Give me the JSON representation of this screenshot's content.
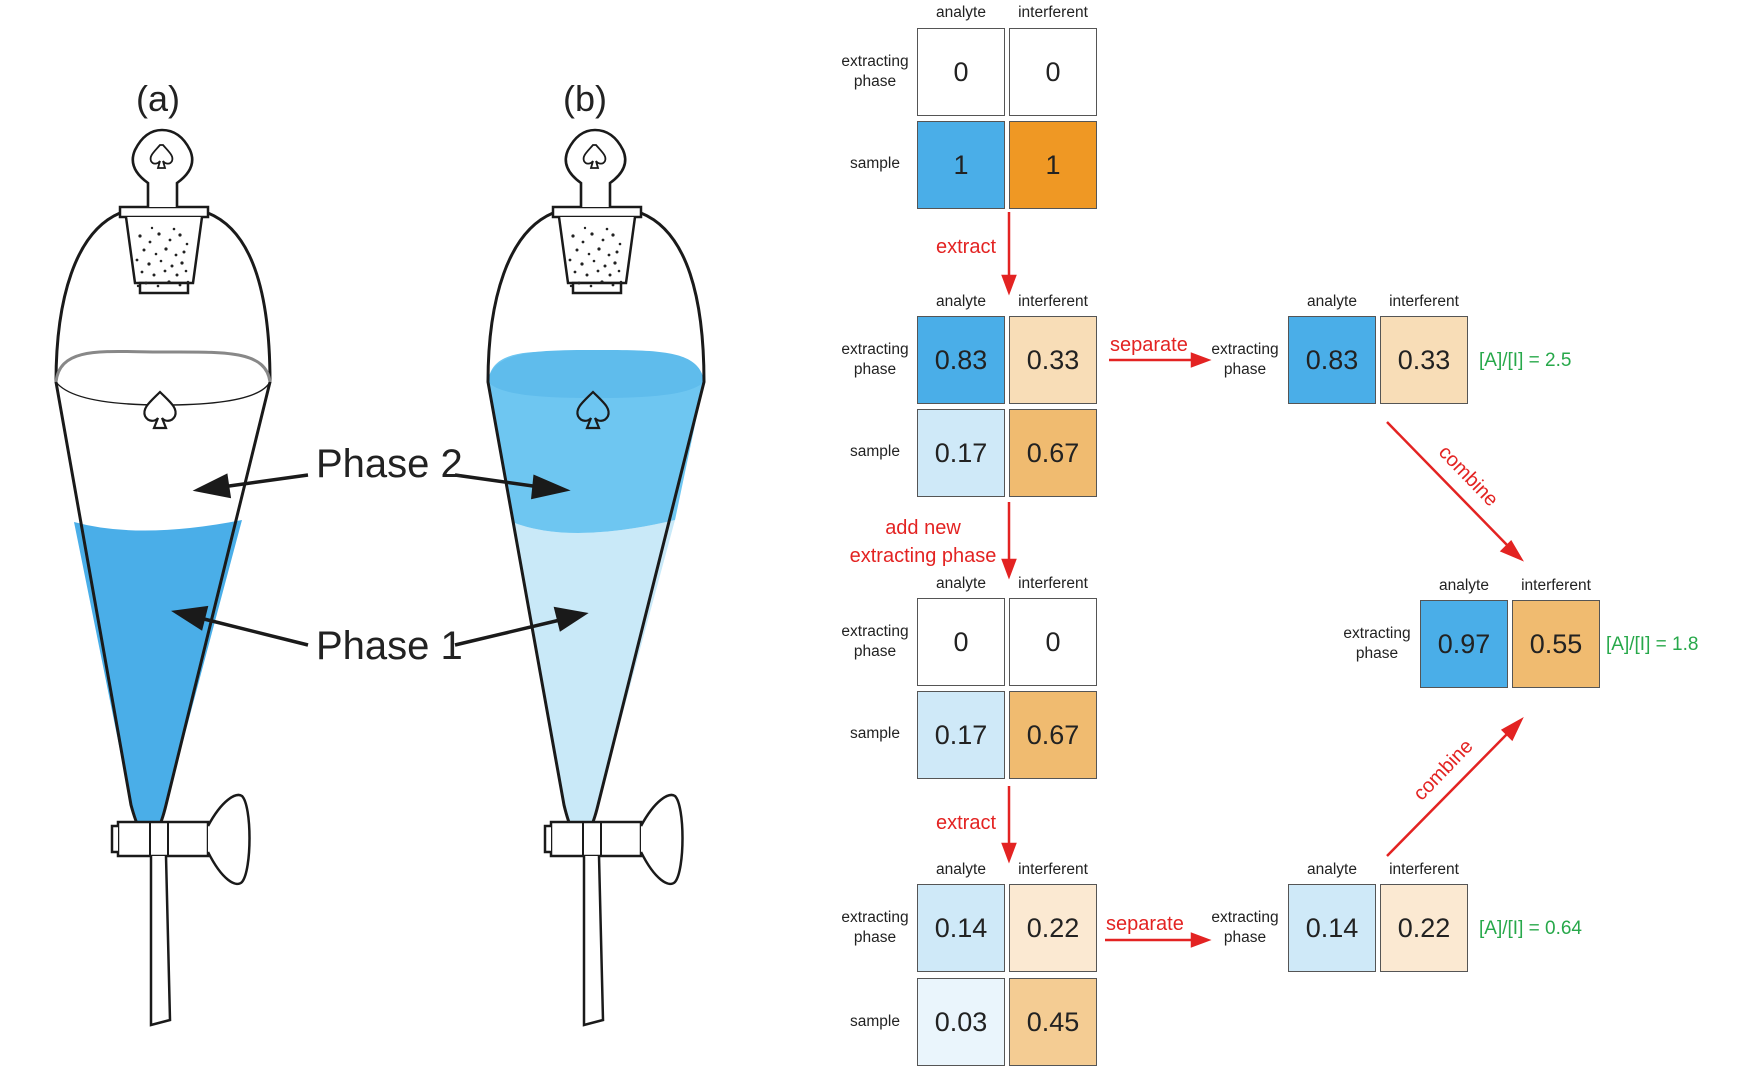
{
  "funnels": {
    "label_a": "(a)",
    "label_b": "(b)",
    "phase2_label": "Phase 2",
    "phase1_label": "Phase 1"
  },
  "colors": {
    "analyte_full": "#4aaee8",
    "analyte_light": "#cfe9f8",
    "analyte_faint": "#eaf5fc",
    "interferent_full": "#ef9824",
    "interferent_mid": "#f0bb70",
    "interferent_light": "#f8ddb7",
    "interferent_faint": "#fbe9d2",
    "arrow_red": "#e32322",
    "ratio_green": "#27a84a",
    "phase2_blue": "#6ec6f1",
    "phase1_blue": "#4aaee8",
    "phase1_light": "#c9e9f8"
  },
  "labels": {
    "analyte": "analyte",
    "interferent": "interferent",
    "extracting_phase": "extracting phase",
    "sample": "sample"
  },
  "tables": {
    "t1": {
      "extracting": [
        "0",
        "0"
      ],
      "sample": [
        "1",
        "1"
      ]
    },
    "t2": {
      "extracting": [
        "0.83",
        "0.33"
      ],
      "sample": [
        "0.17",
        "0.67"
      ]
    },
    "t3": {
      "extracting": [
        "0",
        "0"
      ],
      "sample": [
        "0.17",
        "0.67"
      ]
    },
    "t4": {
      "extracting": [
        "0.14",
        "0.22"
      ],
      "sample": [
        "0.03",
        "0.45"
      ]
    },
    "s1": {
      "extracting": [
        "0.83",
        "0.33"
      ]
    },
    "s2": {
      "extracting": [
        "0.14",
        "0.22"
      ]
    },
    "c": {
      "extracting": [
        "0.97",
        "0.55"
      ]
    }
  },
  "arrow_labels": {
    "extract": "extract",
    "separate": "separate",
    "add_new": "add new extracting phase",
    "combine": "combine"
  },
  "ratios": {
    "s1": "[A]/[I] = 2.5",
    "c": "[A]/[I] = 1.8",
    "s2": "[A]/[I] = 0.64"
  }
}
